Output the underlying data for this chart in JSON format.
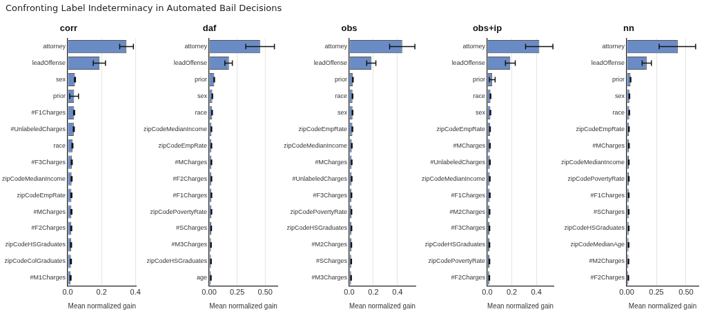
{
  "chart_data": [
    {
      "type": "bar",
      "orientation": "horizontal",
      "title": "corr",
      "xlabel": "Mean normalized gain",
      "annotations": [
        "Confronting Label Indeterminacy in Automated Bail Decisions"
      ],
      "color": "#6a8cc6",
      "grid": "x",
      "categories": [
        "attorney",
        "leadOffense",
        "sex",
        "prior",
        "#F1Charges",
        "#UnlabeledCharges",
        "race",
        "#F3Charges",
        "zipCodeMedianIncome",
        "zipCodeEmpRate",
        "#MCharges",
        "#F2Charges",
        "zipCodeHSGraduates",
        "zipCodeColGraduates",
        "#M1Charges"
      ],
      "values": [
        0.347,
        0.188,
        0.043,
        0.038,
        0.038,
        0.036,
        0.028,
        0.024,
        0.023,
        0.022,
        0.022,
        0.021,
        0.02,
        0.019,
        0.017
      ],
      "errors": [
        [
          0.307,
          0.388
        ],
        [
          0.151,
          0.223
        ],
        0.003,
        [
          0.012,
          0.064
        ],
        0.003,
        0.003,
        0.003,
        0.003,
        0.003,
        0.003,
        0.003,
        0.003,
        0.003,
        0.003,
        0.003
      ],
      "xlim": [
        0,
        0.405
      ],
      "xticks": [
        {
          "value": 0,
          "label": "0.0"
        },
        {
          "value": 0.2,
          "label": "0.2"
        },
        {
          "value": 0.4,
          "label": "0.4"
        }
      ]
    },
    {
      "type": "bar",
      "orientation": "horizontal",
      "title": "daf",
      "xlabel": "Mean normalized gain",
      "color": "#6a8cc6",
      "grid": "x",
      "categories": [
        "attorney",
        "leadOffense",
        "prior",
        "sex",
        "race",
        "zipCodeMedianIncome",
        "zipCodeEmpRate",
        "#MCharges",
        "#F2Charges",
        "#F1Charges",
        "zipCodePovertyRate",
        "#SCharges",
        "#M3Charges",
        "zipCodeHSGraduates",
        "age"
      ],
      "values": [
        0.455,
        0.177,
        0.045,
        0.028,
        0.026,
        0.02,
        0.02,
        0.02,
        0.02,
        0.02,
        0.02,
        0.018,
        0.016,
        0.016,
        0.015
      ],
      "errors": [
        [
          0.327,
          0.583
        ],
        [
          0.14,
          0.207
        ],
        0.003,
        0.003,
        0.003,
        0.003,
        0.003,
        0.003,
        0.003,
        0.003,
        0.003,
        0.003,
        0.003,
        0.003,
        0.003
      ],
      "xlim": [
        0,
        0.61
      ],
      "xticks": [
        {
          "value": 0,
          "label": "0.00"
        },
        {
          "value": 0.25,
          "label": "0.25"
        },
        {
          "value": 0.5,
          "label": "0.50"
        }
      ]
    },
    {
      "type": "bar",
      "orientation": "horizontal",
      "title": "obs",
      "xlabel": "Mean normalized gain",
      "color": "#6a8cc6",
      "grid": "x",
      "categories": [
        "attorney",
        "leadOffense",
        "prior",
        "race",
        "sex",
        "zipCodeEmpRate",
        "zipCodeMedianIncome",
        "#MCharges",
        "#UnlabeledCharges",
        "#F3Charges",
        "zipCodePovertyRate",
        "zipCodeHSGraduates",
        "#M2Charges",
        "#SCharges",
        "#M3Charges"
      ],
      "values": [
        0.44,
        0.185,
        0.03,
        0.027,
        0.027,
        0.026,
        0.021,
        0.02,
        0.02,
        0.018,
        0.018,
        0.018,
        0.017,
        0.016,
        0.015
      ],
      "errors": [
        [
          0.335,
          0.545
        ],
        [
          0.145,
          0.221
        ],
        0.003,
        0.003,
        0.003,
        0.003,
        0.003,
        0.003,
        0.003,
        0.003,
        0.003,
        0.003,
        0.003,
        0.003,
        0.003
      ],
      "xlim": [
        0,
        0.55
      ],
      "xticks": [
        {
          "value": 0,
          "label": "0.0"
        },
        {
          "value": 0.2,
          "label": "0.2"
        },
        {
          "value": 0.4,
          "label": "0.4"
        }
      ]
    },
    {
      "type": "bar",
      "orientation": "horizontal",
      "title": "obs+ip",
      "xlabel": "Mean normalized gain",
      "color": "#6a8cc6",
      "grid": "x",
      "categories": [
        "attorney",
        "leadOffense",
        "prior",
        "race",
        "sex",
        "zipCodeEmpRate",
        "#MCharges",
        "#UnlabeledCharges",
        "zipCodeMedianIncome",
        "#F1Charges",
        "#M2Charges",
        "#F3Charges",
        "zipCodeHSGraduates",
        "zipCodePovertyRate",
        "#F2Charges"
      ],
      "values": [
        0.424,
        0.187,
        0.039,
        0.026,
        0.025,
        0.022,
        0.021,
        0.021,
        0.02,
        0.02,
        0.018,
        0.017,
        0.017,
        0.017,
        0.016
      ],
      "errors": [
        [
          0.312,
          0.535
        ],
        [
          0.148,
          0.228
        ],
        [
          0.017,
          0.064
        ],
        0.003,
        0.003,
        0.003,
        0.003,
        0.003,
        0.003,
        0.003,
        0.003,
        0.003,
        0.003,
        0.003,
        0.003
      ],
      "xlim": [
        0,
        0.54
      ],
      "xticks": [
        {
          "value": 0,
          "label": "0.0"
        },
        {
          "value": 0.2,
          "label": "0.2"
        },
        {
          "value": 0.4,
          "label": "0.4"
        }
      ]
    },
    {
      "type": "bar",
      "orientation": "horizontal",
      "title": "nn",
      "xlabel": "Mean normalized gain",
      "color": "#6a8cc6",
      "grid": "x",
      "categories": [
        "attorney",
        "leadOffense",
        "prior",
        "sex",
        "race",
        "zipCodeEmpRate",
        "#MCharges",
        "zipCodeMedianIncome",
        "zipCodePovertyRate",
        "#F1Charges",
        "#SCharges",
        "zipCodeHSGraduates",
        "zipCodeMedianAge",
        "#M2Charges",
        "#F2Charges"
      ],
      "values": [
        0.43,
        0.168,
        0.032,
        0.022,
        0.021,
        0.018,
        0.018,
        0.017,
        0.017,
        0.016,
        0.016,
        0.016,
        0.015,
        0.014,
        0.013
      ],
      "errors": [
        [
          0.273,
          0.581
        ],
        [
          0.13,
          0.208
        ],
        0.003,
        0.003,
        0.003,
        0.003,
        0.003,
        0.003,
        0.003,
        0.003,
        0.003,
        0.003,
        0.003,
        0.003,
        0.003
      ],
      "xlim": [
        0,
        0.605
      ],
      "xticks": [
        {
          "value": 0,
          "label": "0.00"
        },
        {
          "value": 0.25,
          "label": "0.25"
        },
        {
          "value": 0.5,
          "label": "0.50"
        }
      ]
    }
  ]
}
